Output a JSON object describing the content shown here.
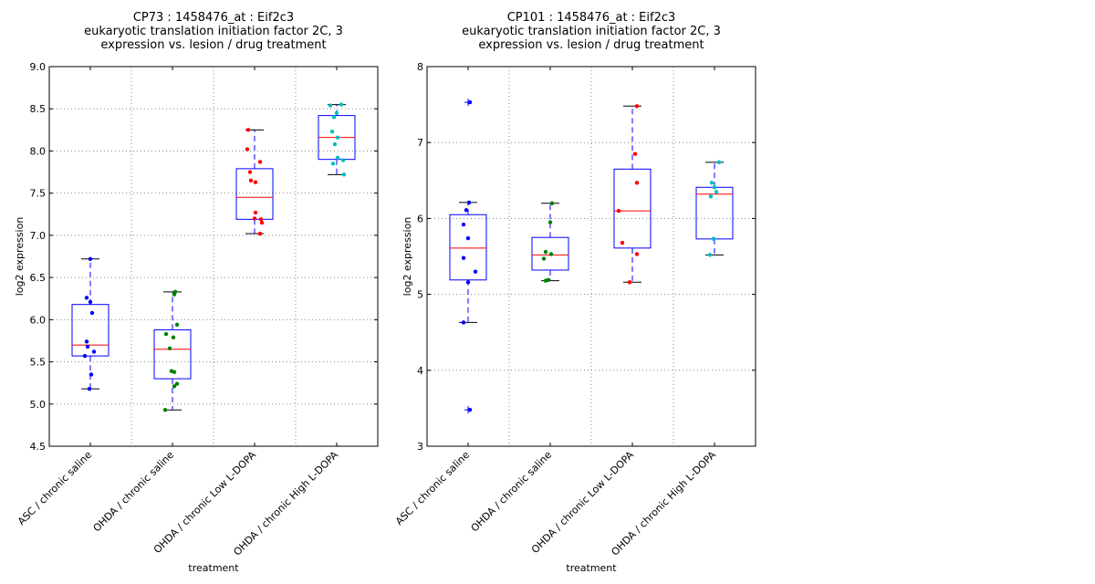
{
  "chart_data": [
    {
      "type": "box",
      "title": [
        "CP73 : 1458476_at : Eif2c3",
        "eukaryotic translation initiation factor 2C, 3",
        "expression vs. lesion / drug treatment"
      ],
      "xlabel": "treatment",
      "ylabel": "log2 expression",
      "ylim": [
        4.5,
        9.0
      ],
      "yticks": [
        "4.5",
        "5.0",
        "5.5",
        "6.0",
        "6.5",
        "7.0",
        "7.5",
        "8.0",
        "8.5",
        "9.0"
      ],
      "ytick_values": [
        4.5,
        5.0,
        5.5,
        6.0,
        6.5,
        7.0,
        7.5,
        8.0,
        8.5,
        9.0
      ],
      "grid": true,
      "categories": [
        "ASC / chronic saline",
        "OHDA / chronic saline",
        "OHDA / chronic Low L-DOPA",
        "OHDA / chronic High L-DOPA"
      ],
      "groups": [
        {
          "whisker_low": 5.18,
          "q1": 5.57,
          "median": 5.7,
          "q3": 6.18,
          "whisker_high": 6.72,
          "outliers": [],
          "color": "#0000ff",
          "points": [
            6.72,
            6.26,
            6.21,
            6.08,
            5.74,
            5.68,
            5.62,
            5.57,
            5.35,
            5.18
          ]
        },
        {
          "whisker_low": 4.93,
          "q1": 5.3,
          "median": 5.65,
          "q3": 5.88,
          "whisker_high": 6.33,
          "outliers": [],
          "color": "#008000",
          "points": [
            6.33,
            6.3,
            5.94,
            5.83,
            5.79,
            5.66,
            5.39,
            5.38,
            5.24,
            5.21,
            4.93
          ]
        },
        {
          "whisker_low": 7.02,
          "q1": 7.19,
          "median": 7.45,
          "q3": 7.79,
          "whisker_high": 8.25,
          "outliers": [],
          "color": "#ff0000",
          "points": [
            8.25,
            8.02,
            7.87,
            7.75,
            7.65,
            7.63,
            7.27,
            7.2,
            7.19,
            7.15,
            7.02
          ]
        },
        {
          "whisker_low": 7.72,
          "q1": 7.9,
          "median": 8.16,
          "q3": 8.42,
          "whisker_high": 8.55,
          "outliers": [],
          "color": "#00bfbf",
          "points": [
            8.55,
            8.54,
            8.45,
            8.4,
            8.23,
            8.16,
            8.08,
            7.92,
            7.89,
            7.85,
            7.72
          ]
        }
      ]
    },
    {
      "type": "box",
      "title": [
        "CP101 : 1458476_at : Eif2c3",
        "eukaryotic translation initiation factor 2C, 3",
        "expression vs. lesion / drug treatment"
      ],
      "xlabel": "treatment",
      "ylabel": "log2 expression",
      "ylim": [
        3,
        8
      ],
      "yticks": [
        "3",
        "4",
        "5",
        "6",
        "7",
        "8"
      ],
      "ytick_values": [
        3,
        4,
        5,
        6,
        7,
        8
      ],
      "grid": true,
      "categories": [
        "ASC / chronic saline",
        "OHDA / chronic saline",
        "OHDA / chronic Low L-DOPA",
        "OHDA / chronic High L-DOPA"
      ],
      "groups": [
        {
          "whisker_low": 4.63,
          "q1": 5.19,
          "median": 5.61,
          "q3": 6.05,
          "whisker_high": 6.21,
          "outliers": [
            7.53,
            3.48
          ],
          "color": "#0000ff",
          "points": [
            7.53,
            6.21,
            6.11,
            5.92,
            5.74,
            5.48,
            5.3,
            5.16,
            4.63,
            3.48
          ]
        },
        {
          "whisker_low": 5.18,
          "q1": 5.32,
          "median": 5.52,
          "q3": 5.75,
          "whisker_high": 6.2,
          "outliers": [],
          "color": "#008000",
          "points": [
            6.2,
            5.95,
            5.56,
            5.53,
            5.47,
            5.19,
            5.18
          ]
        },
        {
          "whisker_low": 5.16,
          "q1": 5.61,
          "median": 6.1,
          "q3": 6.65,
          "whisker_high": 7.48,
          "outliers": [],
          "color": "#ff0000",
          "points": [
            7.48,
            6.85,
            6.47,
            6.1,
            5.68,
            5.53,
            5.16
          ]
        },
        {
          "whisker_low": 5.52,
          "q1": 5.73,
          "median": 6.32,
          "q3": 6.41,
          "whisker_high": 6.74,
          "outliers": [],
          "color": "#00bfbf",
          "points": [
            6.74,
            6.47,
            6.41,
            6.35,
            6.29,
            5.73,
            5.73,
            5.52
          ]
        }
      ]
    }
  ]
}
